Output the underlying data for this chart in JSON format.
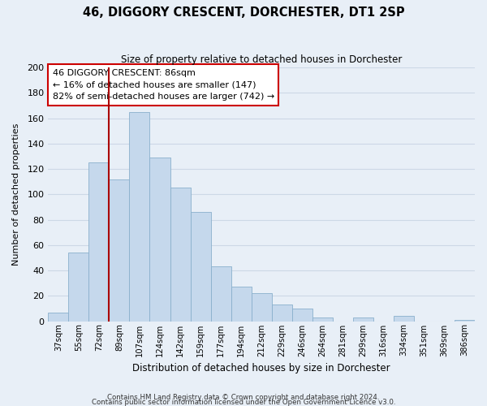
{
  "title": "46, DIGGORY CRESCENT, DORCHESTER, DT1 2SP",
  "subtitle": "Size of property relative to detached houses in Dorchester",
  "xlabel": "Distribution of detached houses by size in Dorchester",
  "ylabel": "Number of detached properties",
  "bar_labels": [
    "37sqm",
    "55sqm",
    "72sqm",
    "89sqm",
    "107sqm",
    "124sqm",
    "142sqm",
    "159sqm",
    "177sqm",
    "194sqm",
    "212sqm",
    "229sqm",
    "246sqm",
    "264sqm",
    "281sqm",
    "299sqm",
    "316sqm",
    "334sqm",
    "351sqm",
    "369sqm",
    "386sqm"
  ],
  "bar_values": [
    7,
    54,
    125,
    112,
    165,
    129,
    105,
    86,
    43,
    27,
    22,
    13,
    10,
    3,
    0,
    3,
    0,
    4,
    0,
    0,
    1
  ],
  "bar_color": "#c5d8ec",
  "bar_edge_color": "#8ab0cc",
  "grid_color": "#cdd8e6",
  "bg_color": "#e8eff7",
  "vline_x_bar": 3,
  "vline_color": "#aa0000",
  "annotation_line1": "46 DIGGORY CRESCENT: 86sqm",
  "annotation_line2": "← 16% of detached houses are smaller (147)",
  "annotation_line3": "82% of semi-detached houses are larger (742) →",
  "annotation_box_facecolor": "#ffffff",
  "annotation_box_edgecolor": "#cc0000",
  "ylim": [
    0,
    200
  ],
  "yticks": [
    0,
    20,
    40,
    60,
    80,
    100,
    120,
    140,
    160,
    180,
    200
  ],
  "footer_line1": "Contains HM Land Registry data © Crown copyright and database right 2024.",
  "footer_line2": "Contains public sector information licensed under the Open Government Licence v3.0."
}
